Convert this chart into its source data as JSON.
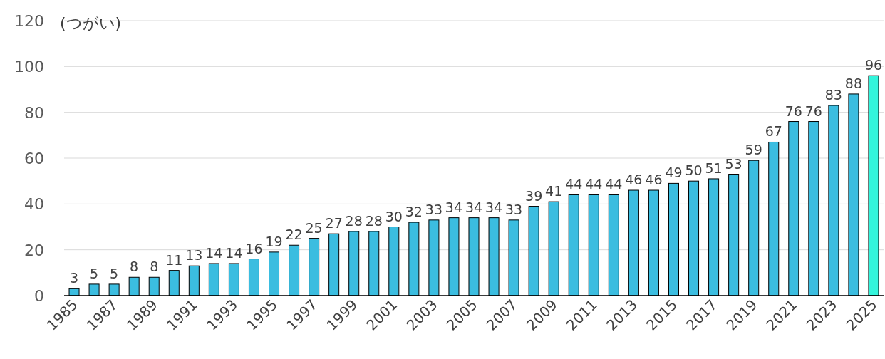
{
  "chart_data": {
    "type": "bar",
    "ylabel": "(つがい)",
    "categories": [
      "1985",
      null,
      "1987",
      null,
      "1989",
      null,
      "1991",
      null,
      "1993",
      null,
      "1995",
      null,
      "1997",
      null,
      "1999",
      null,
      "2001",
      null,
      "2003",
      null,
      "2005",
      null,
      "2007",
      null,
      "2009",
      null,
      "2011",
      null,
      "2013",
      null,
      "2015",
      null,
      "2017",
      null,
      "2019",
      null,
      "2021",
      null,
      "2023",
      null,
      "2025"
    ],
    "values": [
      3,
      5,
      5,
      8,
      8,
      11,
      13,
      14,
      14,
      16,
      19,
      22,
      25,
      27,
      28,
      28,
      30,
      32,
      33,
      34,
      34,
      34,
      33,
      39,
      41,
      44,
      44,
      44,
      46,
      46,
      49,
      50,
      51,
      53,
      59,
      67,
      76,
      76,
      83,
      88,
      96
    ],
    "colors": [
      "#3bbde0",
      "#3bbde0",
      "#3bbde0",
      "#3bbde0",
      "#3bbde0",
      "#3bbde0",
      "#3bbde0",
      "#3bbde0",
      "#3bbde0",
      "#3bbde0",
      "#3bbde0",
      "#3bbde0",
      "#3bbde0",
      "#3bbde0",
      "#3bbde0",
      "#3bbde0",
      "#3bbde0",
      "#3bbde0",
      "#3bbde0",
      "#3bbde0",
      "#3bbde0",
      "#3bbde0",
      "#3bbde0",
      "#3bbde0",
      "#3bbde0",
      "#3bbde0",
      "#3bbde0",
      "#3bbde0",
      "#3bbde0",
      "#3bbde0",
      "#3bbde0",
      "#3bbde0",
      "#3bbde0",
      "#3bbde0",
      "#3bbde0",
      "#3bbde0",
      "#3bbde0",
      "#3bbde0",
      "#3bbde0",
      "#3bbde0",
      "#33f5dc"
    ],
    "ylim": [
      0,
      120
    ],
    "yticks": [
      0,
      20,
      40,
      60,
      80,
      100,
      120
    ],
    "grid": "y",
    "data_labels": true
  }
}
